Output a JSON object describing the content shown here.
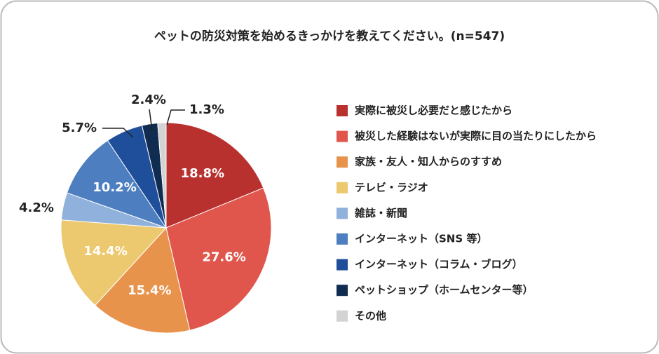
{
  "chart_data": {
    "type": "pie",
    "title": "ペットの防災対策を始めるきっかけを教えてください。(n=547)",
    "categories": [
      "実際に被災し必要だと感じたから",
      "被災した経験はないが実際に目の当たりにしたから",
      "家族・友人・知人からのすすめ",
      "テレビ・ラジオ",
      "雑誌・新聞",
      "インターネット（SNS 等）",
      "インターネット（コラム・ブログ）",
      "ペットショップ（ホームセンター等）",
      "その他"
    ],
    "values": [
      18.8,
      27.6,
      15.4,
      14.4,
      4.2,
      10.2,
      5.7,
      2.4,
      1.3
    ],
    "value_labels": [
      "18.8%",
      "27.6%",
      "15.4%",
      "14.4%",
      "4.2%",
      "10.2%",
      "5.7%",
      "2.4%",
      "1.3%"
    ],
    "colors": [
      "#b8312f",
      "#e0564c",
      "#e8934c",
      "#ecc96e",
      "#8fb1dc",
      "#4d7fc0",
      "#1f4f9a",
      "#102c50",
      "#d3d3d3"
    ],
    "legend": "right"
  }
}
